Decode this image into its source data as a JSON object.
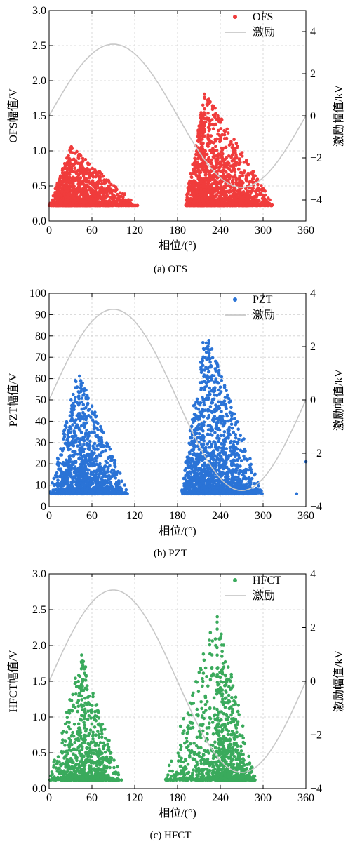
{
  "chart_data": [
    {
      "id": "ofs",
      "type": "scatter",
      "caption": "(a)  OFS",
      "xlabel": "相位/(°)",
      "ylabel_left": "OFS幅值/V",
      "ylabel_right": "激励幅值/kV",
      "xlim": [
        0,
        360
      ],
      "ylim_left": [
        0,
        3.0
      ],
      "ylim_right": [
        -5,
        5
      ],
      "xticks": [
        0,
        60,
        120,
        180,
        240,
        300,
        360
      ],
      "yticks_left": [
        0.0,
        0.5,
        1.0,
        1.5,
        2.0,
        2.5,
        3.0
      ],
      "yticks_left_labels": [
        "0.0",
        "0.5",
        "1.0",
        "1.5",
        "2.0",
        "2.5",
        "3.0"
      ],
      "yticks_right": [
        -4,
        -2,
        0,
        2,
        4
      ],
      "yticks_right_labels": [
        "−4",
        "−2",
        "0",
        "2",
        "4"
      ],
      "grid": true,
      "legend_position": "top-right",
      "series": [
        {
          "name": "OFS",
          "color": "#f03c3c",
          "kind": "scatter",
          "clusters": [
            {
              "x_start": 0,
              "x_end": 125,
              "x_peak": 30,
              "floor": 0.22,
              "peak_max": 1.07,
              "count": 1500
            },
            {
              "x_start": 190,
              "x_end": 315,
              "x_peak": 218,
              "floor": 0.22,
              "peak_max": 1.87,
              "count": 1900
            }
          ]
        },
        {
          "name": "激励",
          "color": "#c8c8c8",
          "kind": "line",
          "function": "sine",
          "amplitude": 3.4,
          "offset": 0.0
        }
      ]
    },
    {
      "id": "pzt",
      "type": "scatter",
      "caption": "(b)  PZT",
      "xlabel": "相位/(°)",
      "ylabel_left": "PZT幅值/V",
      "ylabel_right": "激励幅值/kV",
      "xlim": [
        0,
        360
      ],
      "ylim_left": [
        0,
        100
      ],
      "ylim_right": [
        -4,
        4
      ],
      "xticks": [
        0,
        60,
        120,
        180,
        240,
        300,
        360
      ],
      "yticks_left": [
        0,
        10,
        20,
        30,
        40,
        50,
        60,
        70,
        80,
        90,
        100
      ],
      "yticks_left_labels": [
        "0",
        "10",
        "20",
        "30",
        "40",
        "50",
        "60",
        "70",
        "80",
        "90",
        "100"
      ],
      "yticks_right": [
        -4,
        -2,
        0,
        2,
        4
      ],
      "yticks_right_labels": [
        "−4",
        "−2",
        "0",
        "2",
        "4"
      ],
      "grid": true,
      "legend_position": "top-right",
      "series": [
        {
          "name": "PZT",
          "color": "#2a73d6",
          "kind": "scatter",
          "clusters": [
            {
              "x_start": 0,
              "x_end": 112,
              "x_peak": 40,
              "floor": 6,
              "peak_max": 64,
              "count": 1500
            },
            {
              "x_start": 185,
              "x_end": 300,
              "x_peak": 218,
              "floor": 6,
              "peak_max": 84,
              "count": 1800
            }
          ],
          "extra_points": [
            [
              347,
              6
            ],
            [
              360,
              21
            ]
          ]
        },
        {
          "name": "激励",
          "color": "#c8c8c8",
          "kind": "line",
          "function": "sine",
          "amplitude": 3.4,
          "offset": 0.0
        }
      ]
    },
    {
      "id": "hfct",
      "type": "scatter",
      "caption": "(c)  HFCT",
      "xlabel": "相位/(°)",
      "ylabel_left": "HFCT幅值/V",
      "ylabel_right": "激励幅值/kV",
      "xlim": [
        0,
        360
      ],
      "ylim_left": [
        0,
        3.0
      ],
      "ylim_right": [
        -4,
        4
      ],
      "xticks": [
        0,
        60,
        120,
        180,
        240,
        300,
        360
      ],
      "yticks_left": [
        0.0,
        0.5,
        1.0,
        1.5,
        2.0,
        2.5,
        3.0
      ],
      "yticks_left_labels": [
        "0.0",
        "0.5",
        "1.0",
        "1.5",
        "2.0",
        "2.5",
        "3.0"
      ],
      "yticks_right": [
        -4,
        -2,
        0,
        2,
        4
      ],
      "yticks_right_labels": [
        "−4",
        "−2",
        "0",
        "2",
        "4"
      ],
      "grid": true,
      "legend_position": "top-right",
      "series": [
        {
          "name": "HFCT",
          "color": "#3aaa5c",
          "kind": "scatter",
          "clusters": [
            {
              "x_start": 0,
              "x_end": 102,
              "x_peak": 45,
              "floor": 0.12,
              "peak_max": 1.9,
              "count": 900
            },
            {
              "x_start": 160,
              "x_end": 290,
              "x_peak": 235,
              "floor": 0.12,
              "peak_max": 2.47,
              "count": 1100
            }
          ]
        },
        {
          "name": "激励",
          "color": "#c8c8c8",
          "kind": "line",
          "function": "sine",
          "amplitude": 3.4,
          "offset": 0.0
        }
      ]
    }
  ]
}
